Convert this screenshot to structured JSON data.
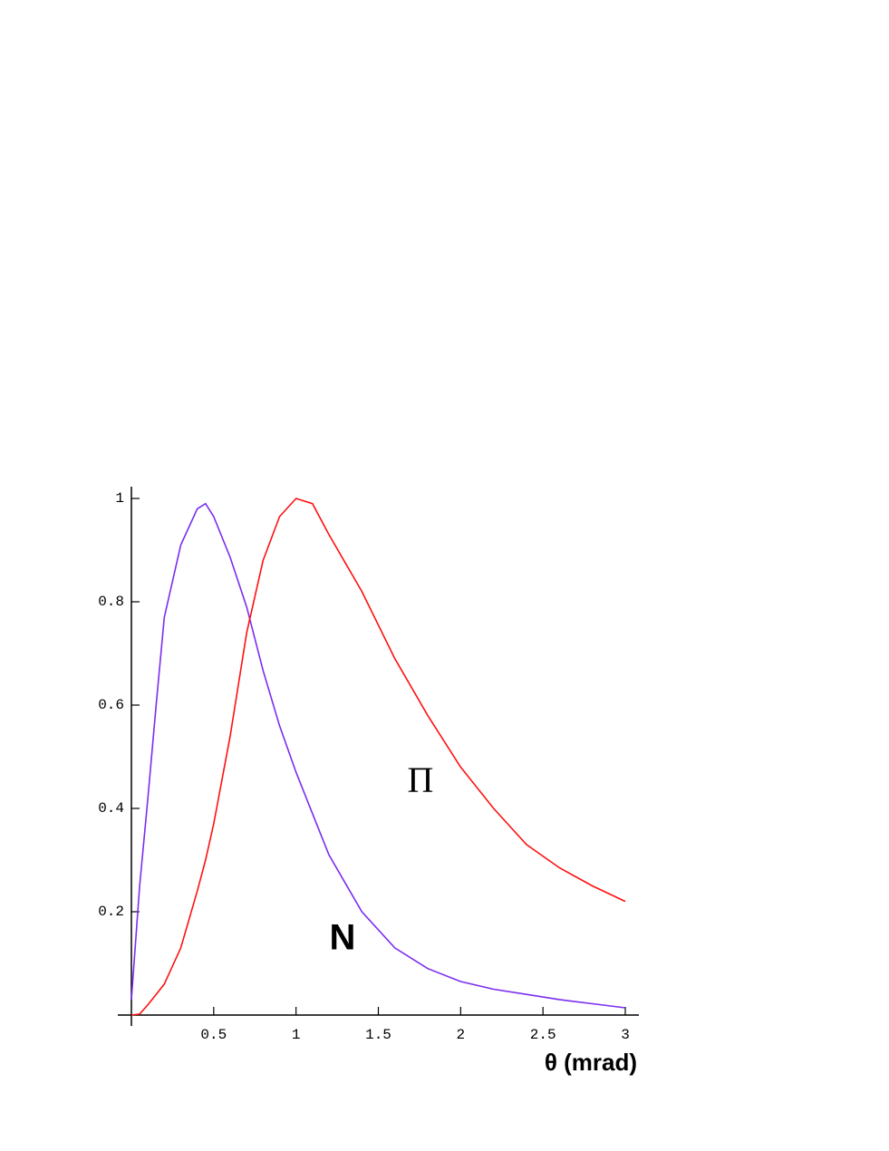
{
  "chart_data": {
    "type": "line",
    "x_label": "θ (mrad)",
    "x": [
      0,
      0.05,
      0.1,
      0.15,
      0.2,
      0.3,
      0.4,
      0.45,
      0.5,
      0.6,
      0.7,
      0.8,
      0.9,
      1.0,
      1.1,
      1.2,
      1.4,
      1.6,
      1.8,
      2.0,
      2.2,
      2.4,
      2.6,
      2.8,
      3.0
    ],
    "series": [
      {
        "name": "N",
        "color": "#7b2cf0",
        "label_color": "#6a6acc",
        "values": [
          0.03,
          0.25,
          0.42,
          0.6,
          0.77,
          0.91,
          0.98,
          0.99,
          0.965,
          0.886,
          0.79,
          0.667,
          0.56,
          0.47,
          0.39,
          0.31,
          0.2,
          0.13,
          0.09,
          0.065,
          0.05,
          0.04,
          0.03,
          0.022,
          0.014
        ]
      },
      {
        "name": "Π",
        "color": "#ff1010",
        "label_color": "#dd4a5e",
        "values": [
          0,
          0.002,
          0.02,
          0.04,
          0.06,
          0.13,
          0.24,
          0.3,
          0.37,
          0.54,
          0.74,
          0.88,
          0.965,
          1.0,
          0.99,
          0.93,
          0.82,
          0.69,
          0.58,
          0.48,
          0.4,
          0.33,
          0.285,
          0.25,
          0.22
        ]
      }
    ],
    "xlim": [
      0,
      3
    ],
    "ylim": [
      0,
      1
    ],
    "xticks": [
      0.5,
      1,
      1.5,
      2,
      2.5,
      3
    ],
    "yticks": [
      0.2,
      0.4,
      0.6,
      0.8,
      1
    ]
  }
}
